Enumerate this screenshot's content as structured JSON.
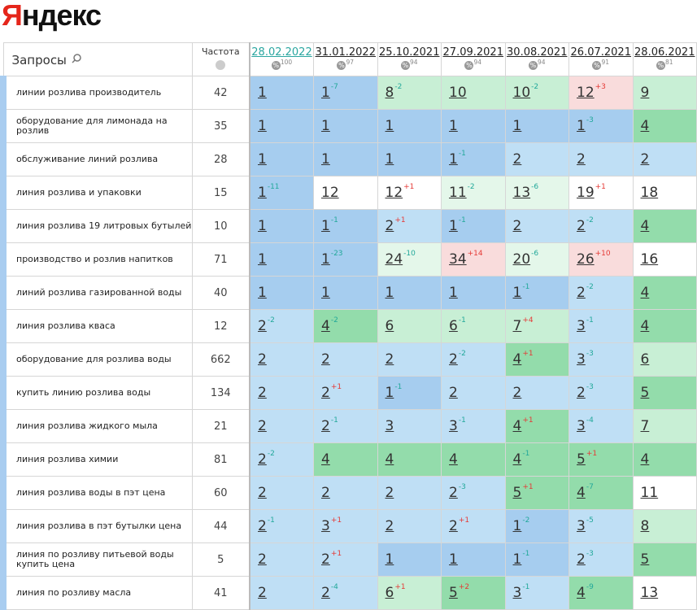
{
  "logo": "Яндекс",
  "table": {
    "headers": {
      "query": "Запросы",
      "frequency": "Частота",
      "dates": [
        {
          "date": "28.02.2022",
          "percent": 100
        },
        {
          "date": "31.01.2022",
          "percent": 97
        },
        {
          "date": "25.10.2021",
          "percent": 94
        },
        {
          "date": "27.09.2021",
          "percent": 94
        },
        {
          "date": "30.08.2021",
          "percent": 94
        },
        {
          "date": "26.07.2021",
          "percent": 91
        },
        {
          "date": "28.06.2021",
          "percent": 81
        }
      ]
    },
    "rows": [
      {
        "query": "линии розлива производитель",
        "frequency": 42,
        "cells": [
          {
            "pos": 1
          },
          {
            "pos": 1,
            "change": "-7"
          },
          {
            "pos": 8,
            "change": "-2"
          },
          {
            "pos": 10
          },
          {
            "pos": 10,
            "change": "-2"
          },
          {
            "pos": 12,
            "change": "+3"
          },
          {
            "pos": 9
          }
        ]
      },
      {
        "query": "оборудование для лимонада на розлив",
        "frequency": 35,
        "cells": [
          {
            "pos": 1
          },
          {
            "pos": 1
          },
          {
            "pos": 1
          },
          {
            "pos": 1
          },
          {
            "pos": 1
          },
          {
            "pos": 1,
            "change": "-3"
          },
          {
            "pos": 4
          }
        ]
      },
      {
        "query": "обслуживание линий розлива",
        "frequency": 28,
        "cells": [
          {
            "pos": 1
          },
          {
            "pos": 1
          },
          {
            "pos": 1
          },
          {
            "pos": 1,
            "change": "-1"
          },
          {
            "pos": 2
          },
          {
            "pos": 2
          },
          {
            "pos": 2
          }
        ]
      },
      {
        "query": "линия розлива и упаковки",
        "frequency": 15,
        "cells": [
          {
            "pos": 1,
            "change": "-11"
          },
          {
            "pos": 12
          },
          {
            "pos": 12,
            "change": "+1"
          },
          {
            "pos": 11,
            "change": "-2"
          },
          {
            "pos": 13,
            "change": "-6"
          },
          {
            "pos": 19,
            "change": "+1"
          },
          {
            "pos": 18
          }
        ]
      },
      {
        "query": "линия розлива 19 литровых бутылей",
        "frequency": 10,
        "cells": [
          {
            "pos": 1
          },
          {
            "pos": 1,
            "change": "-1"
          },
          {
            "pos": 2,
            "change": "+1"
          },
          {
            "pos": 1,
            "change": "-1"
          },
          {
            "pos": 2
          },
          {
            "pos": 2,
            "change": "-2"
          },
          {
            "pos": 4
          }
        ]
      },
      {
        "query": "производство и розлив напитков",
        "frequency": 71,
        "cells": [
          {
            "pos": 1
          },
          {
            "pos": 1,
            "change": "-23"
          },
          {
            "pos": 24,
            "change": "-10"
          },
          {
            "pos": 34,
            "change": "+14"
          },
          {
            "pos": 20,
            "change": "-6"
          },
          {
            "pos": 26,
            "change": "+10"
          },
          {
            "pos": 16
          }
        ]
      },
      {
        "query": "линий розлива газированной воды",
        "frequency": 40,
        "cells": [
          {
            "pos": 1
          },
          {
            "pos": 1
          },
          {
            "pos": 1
          },
          {
            "pos": 1
          },
          {
            "pos": 1,
            "change": "-1"
          },
          {
            "pos": 2,
            "change": "-2"
          },
          {
            "pos": 4
          }
        ]
      },
      {
        "query": "линия розлива кваса",
        "frequency": 12,
        "cells": [
          {
            "pos": 2,
            "change": "-2"
          },
          {
            "pos": 4,
            "change": "-2"
          },
          {
            "pos": 6
          },
          {
            "pos": 6,
            "change": "-1"
          },
          {
            "pos": 7,
            "change": "+4"
          },
          {
            "pos": 3,
            "change": "-1"
          },
          {
            "pos": 4
          }
        ]
      },
      {
        "query": "оборудование для розлива воды",
        "frequency": 662,
        "cells": [
          {
            "pos": 2
          },
          {
            "pos": 2
          },
          {
            "pos": 2
          },
          {
            "pos": 2,
            "change": "-2"
          },
          {
            "pos": 4,
            "change": "+1"
          },
          {
            "pos": 3,
            "change": "-3"
          },
          {
            "pos": 6
          }
        ]
      },
      {
        "query": "купить линию розлива воды",
        "frequency": 134,
        "cells": [
          {
            "pos": 2
          },
          {
            "pos": 2,
            "change": "+1"
          },
          {
            "pos": 1,
            "change": "-1"
          },
          {
            "pos": 2
          },
          {
            "pos": 2
          },
          {
            "pos": 2,
            "change": "-3"
          },
          {
            "pos": 5
          }
        ]
      },
      {
        "query": "линия розлива жидкого мыла",
        "frequency": 21,
        "cells": [
          {
            "pos": 2
          },
          {
            "pos": 2,
            "change": "-1"
          },
          {
            "pos": 3
          },
          {
            "pos": 3,
            "change": "-1"
          },
          {
            "pos": 4,
            "change": "+1"
          },
          {
            "pos": 3,
            "change": "-4"
          },
          {
            "pos": 7
          }
        ]
      },
      {
        "query": "линия розлива химии",
        "frequency": 81,
        "cells": [
          {
            "pos": 2,
            "change": "-2"
          },
          {
            "pos": 4
          },
          {
            "pos": 4
          },
          {
            "pos": 4
          },
          {
            "pos": 4,
            "change": "-1"
          },
          {
            "pos": 5,
            "change": "+1"
          },
          {
            "pos": 4
          }
        ]
      },
      {
        "query": "линия розлива воды в пэт цена",
        "frequency": 60,
        "cells": [
          {
            "pos": 2
          },
          {
            "pos": 2
          },
          {
            "pos": 2
          },
          {
            "pos": 2,
            "change": "-3"
          },
          {
            "pos": 5,
            "change": "+1"
          },
          {
            "pos": 4,
            "change": "-7"
          },
          {
            "pos": 11
          }
        ]
      },
      {
        "query": "линия розлива в пэт бутылки цена",
        "frequency": 44,
        "cells": [
          {
            "pos": 2,
            "change": "-1"
          },
          {
            "pos": 3,
            "change": "+1"
          },
          {
            "pos": 2
          },
          {
            "pos": 2,
            "change": "+1"
          },
          {
            "pos": 1,
            "change": "-2"
          },
          {
            "pos": 3,
            "change": "-5"
          },
          {
            "pos": 8
          }
        ]
      },
      {
        "query": "линия по розливу питьевой воды купить цена",
        "frequency": 5,
        "cells": [
          {
            "pos": 2
          },
          {
            "pos": 2,
            "change": "+1"
          },
          {
            "pos": 1
          },
          {
            "pos": 1
          },
          {
            "pos": 1,
            "change": "-1"
          },
          {
            "pos": 2,
            "change": "-3"
          },
          {
            "pos": 5
          }
        ]
      },
      {
        "query": "линия по розливу масла",
        "frequency": 41,
        "cells": [
          {
            "pos": 2
          },
          {
            "pos": 2,
            "change": "-4"
          },
          {
            "pos": 6,
            "change": "+1"
          },
          {
            "pos": 5,
            "change": "+2"
          },
          {
            "pos": 3,
            "change": "-1"
          },
          {
            "pos": 4,
            "change": "-9"
          },
          {
            "pos": 13
          }
        ]
      }
    ]
  }
}
